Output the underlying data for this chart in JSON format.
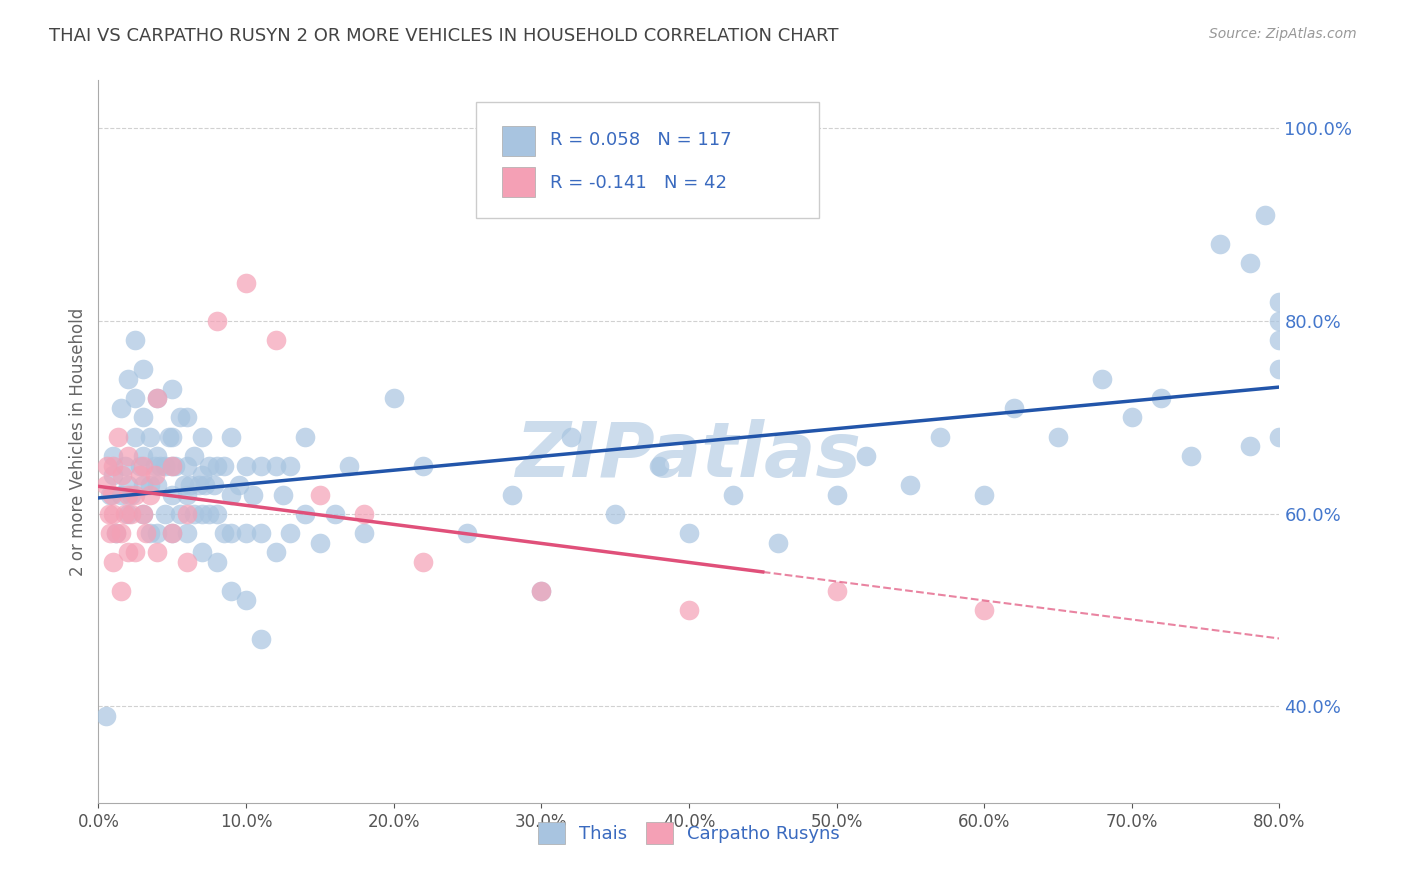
{
  "title": "THAI VS CARPATHO RUSYN 2 OR MORE VEHICLES IN HOUSEHOLD CORRELATION CHART",
  "source": "Source: ZipAtlas.com",
  "xlim": [
    0.0,
    0.8
  ],
  "ylim": [
    0.3,
    1.05
  ],
  "ylabel": "2 or more Vehicles in Household",
  "legend_label1": "Thais",
  "legend_label2": "Carpatho Rusyns",
  "R1": 0.058,
  "N1": 117,
  "R2": -0.141,
  "N2": 42,
  "color_blue": "#a8c4e0",
  "color_pink": "#f4a0b5",
  "trendline_blue": "#2255aa",
  "trendline_pink": "#e0507a",
  "watermark": "ZIPatlas",
  "watermark_color": "#ccdcec",
  "title_color": "#444444",
  "legend_text_color": "#3a6abf",
  "axis_label_color": "#4477cc",
  "background_color": "#ffffff",
  "grid_color": "#cccccc",
  "thai_x": [
    0.005,
    0.008,
    0.01,
    0.01,
    0.012,
    0.015,
    0.015,
    0.018,
    0.02,
    0.02,
    0.02,
    0.022,
    0.025,
    0.025,
    0.025,
    0.028,
    0.03,
    0.03,
    0.03,
    0.03,
    0.03,
    0.035,
    0.035,
    0.035,
    0.038,
    0.04,
    0.04,
    0.04,
    0.04,
    0.042,
    0.045,
    0.045,
    0.048,
    0.05,
    0.05,
    0.05,
    0.05,
    0.05,
    0.052,
    0.055,
    0.055,
    0.058,
    0.06,
    0.06,
    0.06,
    0.06,
    0.062,
    0.065,
    0.065,
    0.068,
    0.07,
    0.07,
    0.07,
    0.07,
    0.072,
    0.075,
    0.075,
    0.078,
    0.08,
    0.08,
    0.08,
    0.085,
    0.085,
    0.09,
    0.09,
    0.09,
    0.09,
    0.095,
    0.1,
    0.1,
    0.1,
    0.105,
    0.11,
    0.11,
    0.11,
    0.12,
    0.12,
    0.125,
    0.13,
    0.13,
    0.14,
    0.14,
    0.15,
    0.16,
    0.17,
    0.18,
    0.2,
    0.22,
    0.25,
    0.28,
    0.3,
    0.32,
    0.35,
    0.38,
    0.4,
    0.43,
    0.46,
    0.5,
    0.52,
    0.55,
    0.57,
    0.6,
    0.62,
    0.65,
    0.68,
    0.7,
    0.72,
    0.74,
    0.76,
    0.78,
    0.78,
    0.79,
    0.8,
    0.8,
    0.8,
    0.8,
    0.8
  ],
  "thai_y": [
    0.39,
    0.62,
    0.64,
    0.66,
    0.58,
    0.62,
    0.71,
    0.65,
    0.6,
    0.63,
    0.74,
    0.62,
    0.68,
    0.72,
    0.78,
    0.65,
    0.6,
    0.63,
    0.66,
    0.7,
    0.75,
    0.58,
    0.63,
    0.68,
    0.65,
    0.58,
    0.63,
    0.66,
    0.72,
    0.65,
    0.6,
    0.65,
    0.68,
    0.58,
    0.62,
    0.65,
    0.68,
    0.73,
    0.65,
    0.6,
    0.7,
    0.63,
    0.58,
    0.62,
    0.65,
    0.7,
    0.63,
    0.6,
    0.66,
    0.63,
    0.56,
    0.6,
    0.64,
    0.68,
    0.63,
    0.6,
    0.65,
    0.63,
    0.55,
    0.6,
    0.65,
    0.58,
    0.65,
    0.52,
    0.58,
    0.62,
    0.68,
    0.63,
    0.51,
    0.58,
    0.65,
    0.62,
    0.47,
    0.58,
    0.65,
    0.56,
    0.65,
    0.62,
    0.58,
    0.65,
    0.6,
    0.68,
    0.57,
    0.6,
    0.65,
    0.58,
    0.72,
    0.65,
    0.58,
    0.62,
    0.52,
    0.68,
    0.6,
    0.65,
    0.58,
    0.62,
    0.57,
    0.62,
    0.66,
    0.63,
    0.68,
    0.62,
    0.71,
    0.68,
    0.74,
    0.7,
    0.72,
    0.66,
    0.88,
    0.67,
    0.86,
    0.91,
    0.68,
    0.75,
    0.78,
    0.82,
    0.8
  ],
  "rusyn_x": [
    0.005,
    0.006,
    0.007,
    0.008,
    0.009,
    0.01,
    0.01,
    0.01,
    0.012,
    0.013,
    0.015,
    0.015,
    0.016,
    0.018,
    0.02,
    0.02,
    0.02,
    0.022,
    0.025,
    0.025,
    0.028,
    0.03,
    0.03,
    0.032,
    0.035,
    0.038,
    0.04,
    0.04,
    0.05,
    0.05,
    0.06,
    0.06,
    0.08,
    0.1,
    0.12,
    0.15,
    0.18,
    0.22,
    0.3,
    0.4,
    0.5,
    0.6
  ],
  "rusyn_y": [
    0.63,
    0.65,
    0.6,
    0.58,
    0.62,
    0.55,
    0.6,
    0.65,
    0.58,
    0.68,
    0.52,
    0.58,
    0.64,
    0.6,
    0.56,
    0.62,
    0.66,
    0.6,
    0.62,
    0.56,
    0.64,
    0.6,
    0.65,
    0.58,
    0.62,
    0.64,
    0.56,
    0.72,
    0.58,
    0.65,
    0.55,
    0.6,
    0.8,
    0.84,
    0.78,
    0.62,
    0.6,
    0.55,
    0.52,
    0.5,
    0.52,
    0.5
  ]
}
